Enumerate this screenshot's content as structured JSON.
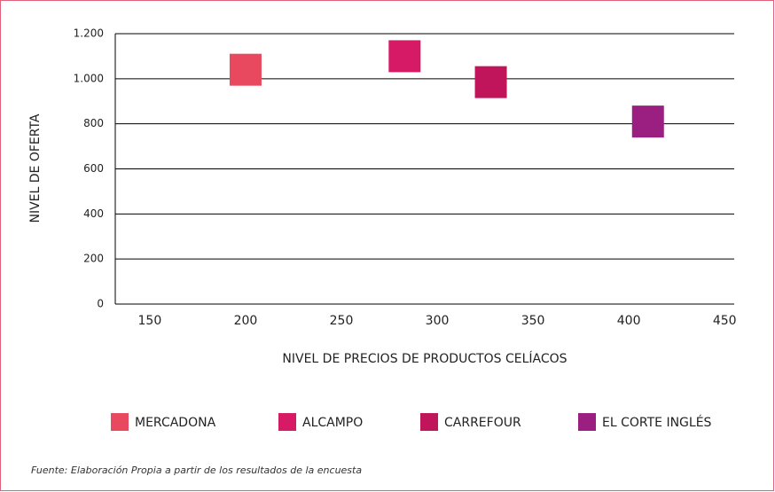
{
  "chart_data": {
    "type": "scatter",
    "xlabel": "NIVEL DE PRECIOS DE PRODUCTOS CELÍACOS",
    "ylabel": "NIVEL DE OFERTA",
    "note": "Fuente: Elaboración Propia a partir de los resultados de la encuesta",
    "series": [
      {
        "name": "MERCADONA",
        "color": "#e8495f",
        "x": [
          200
        ],
        "values": [
          1040
        ]
      },
      {
        "name": "ALCAMPO",
        "color": "#d61a66",
        "x": [
          283
        ],
        "values": [
          1100
        ]
      },
      {
        "name": "CARREFOUR",
        "color": "#c0155a",
        "x": [
          328
        ],
        "values": [
          985
        ]
      },
      {
        "name": "EL CORTE INGLÉS",
        "color": "#9a1f80",
        "x": [
          410
        ],
        "values": [
          810
        ]
      }
    ],
    "xlim": [
      132,
      455
    ],
    "xticks": [
      150,
      200,
      250,
      300,
      350,
      400,
      450
    ],
    "ylim": [
      0,
      1200
    ],
    "yticks": [
      0,
      200,
      400,
      600,
      800,
      {
        "value": 1000,
        "label": "1.000"
      },
      {
        "value": 1200,
        "label": "1.200"
      }
    ],
    "grid": true
  }
}
